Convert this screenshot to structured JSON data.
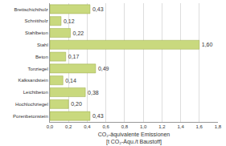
{
  "chart_data": {
    "type": "bar",
    "orientation": "horizontal",
    "categories": [
      "Brettschichtholz",
      "Schnittholz",
      "Stahlbeton",
      "Stahl",
      "Beton",
      "Tonziegel",
      "Kalksandstein",
      "Leichtbeton",
      "Hochlochziegel",
      "Porenbetonstein"
    ],
    "values": [
      0.43,
      0.12,
      0.22,
      1.6,
      0.17,
      0.49,
      0.14,
      0.38,
      0.2,
      0.43
    ],
    "value_labels": [
      "0,43",
      "0,12",
      "0,22",
      "1,60",
      "0,17",
      "0,49",
      "0,14",
      "0,38",
      "0,20",
      "0,43"
    ],
    "data_labels": true,
    "color": "#c9d97e",
    "x_label": "CO₂-äquivalente Emissionen\n[t CO₂-Äqu./t Baustoff]",
    "xlim": [
      0,
      1.8
    ],
    "xticks": [
      {
        "value": 0,
        "label": "0,0"
      },
      {
        "value": 0.2,
        "label": "0,2"
      },
      {
        "value": 0.4,
        "label": "0,4"
      },
      {
        "value": 0.6,
        "label": "0,6"
      },
      {
        "value": 0.8,
        "label": "0,8"
      },
      {
        "value": 1.0,
        "label": "1,0"
      },
      {
        "value": 1.2,
        "label": "1,2"
      },
      {
        "value": 1.4,
        "label": "1,4"
      },
      {
        "value": 1.6,
        "label": "1,6"
      },
      {
        "value": 1.8,
        "label": "1,8"
      }
    ],
    "grid": true
  }
}
